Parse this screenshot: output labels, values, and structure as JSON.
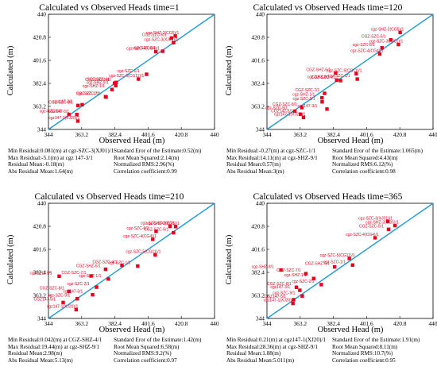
{
  "chart_data": [
    {
      "type": "scatter",
      "title": "Calculated vs Observed Heads   time=1",
      "xlabel": "Observed Head (m)",
      "ylabel": "Calculated (m)",
      "xlim": [
        344,
        440
      ],
      "ylim": [
        344,
        440
      ],
      "ticks": [
        "344",
        "363.2",
        "382.4",
        "401.6",
        "420.8",
        "440"
      ],
      "reference_line": "y=x",
      "points": [
        {
          "label": "cgz-SZC-3(XJ01)/1",
          "x": 416.3,
          "y": 416.3
        },
        {
          "label": "cgz-SHZ-2(CG5)/1",
          "x": 417.3,
          "y": 421.9
        },
        {
          "label": "CGZ-SZC-5/1",
          "x": 415.1,
          "y": 420.2
        },
        {
          "label": "cgz-SZC-4(CG4)/1",
          "x": 406.1,
          "y": 408.9
        },
        {
          "label": "cgz-SZC-6/1",
          "x": 410.0,
          "y": 409.2
        },
        {
          "label": "cgz-SZC-1/1",
          "x": 400.7,
          "y": 390.0
        },
        {
          "label": "cgz-SZC-5(CG11)/1",
          "x": 396.0,
          "y": 386.0
        },
        {
          "label": "CGZ-SZC-4/1",
          "x": 383.1,
          "y": 383.2
        },
        {
          "label": "CGZ-SHZ-5/1",
          "x": 382.2,
          "y": 382.6
        },
        {
          "label": "cgz-SHZ-9/1",
          "x": 382.9,
          "y": 380.5
        },
        {
          "label": "cgz-SHZ-1/1",
          "x": 380.7,
          "y": 377.3
        },
        {
          "label": "CGZ-SZC-7/1",
          "x": 377.0,
          "y": 371.3
        },
        {
          "label": "cgz-SZC-2/1",
          "x": 377.3,
          "y": 371.0
        },
        {
          "label": "CGZ-SZC-8/1",
          "x": 361.1,
          "y": 364.0
        },
        {
          "label": "cgz147-3/1",
          "x": 363.5,
          "y": 364.6
        },
        {
          "label": "cgz-SZC-9/1",
          "x": 355.8,
          "y": 356.5
        },
        {
          "label": "CGZ147-5/1",
          "x": 360.4,
          "y": 356.4
        },
        {
          "label": "cgz147-1(XJ20)/1",
          "x": 361.0,
          "y": 351.0
        }
      ],
      "stats_left": [
        "Min Residual:0.081(m) at cgz-SZC-3(XJ01)/1",
        "Max Residual:-5.1(m) at cgz 147-3/1",
        "Residual Mean:-0.18(m)",
        "Abs Residual Mean:1.64(m)"
      ],
      "stats_right": [
        "Standard Eror of the Estimate:0.52(m)",
        "Root Mean Squared:2.14(m)",
        "Normalized RMS:2.96(%)",
        "Correlation coefficient:0.99"
      ]
    },
    {
      "type": "scatter",
      "title": "Calculated vs Observed Heads   time=120",
      "xlabel": "Observed Head (m)",
      "ylabel": "Calculated (m)",
      "xlim": [
        344,
        440
      ],
      "ylim": [
        344,
        440
      ],
      "ticks": [
        "344",
        "363.2",
        "382.4",
        "401.6",
        "420.8",
        "440"
      ],
      "reference_line": "y=x",
      "points": [
        {
          "label": "cgz-SHZ-2(CG5)/1",
          "x": 421.0,
          "y": 424.9
        },
        {
          "label": "CGZ-SZC-5/1",
          "x": 415.6,
          "y": 418.7
        },
        {
          "label": "cgz-SZC-3(XJ01)/1",
          "x": 420.0,
          "y": 414.8
        },
        {
          "label": "cgz-SZC-6/1",
          "x": 410.5,
          "y": 412.0
        },
        {
          "label": "cgz-SZC-4(CG4)/1",
          "x": 409.2,
          "y": 406.9
        },
        {
          "label": "CGZ-SHZ-5/1",
          "x": 383.7,
          "y": 391.0
        },
        {
          "label": "cgz-SZC-5(CG11)/1",
          "x": 395.6,
          "y": 390.5
        },
        {
          "label": "cgz-SHZ-9/1",
          "x": 384.3,
          "y": 385.2
        },
        {
          "label": "CGZ-SZC-4/1",
          "x": 386.5,
          "y": 384.7
        },
        {
          "label": "cgz-SZC-1/1",
          "x": 396.2,
          "y": 386.0
        },
        {
          "label": "CGZ-SZC-7/1",
          "x": 377.3,
          "y": 374.1
        },
        {
          "label": "cgz-SHZ-1/1",
          "x": 375.8,
          "y": 370.4
        },
        {
          "label": "cgz-SZC-2/1",
          "x": 375.9,
          "y": 367.0
        },
        {
          "label": "CGZ-SZC-8/1",
          "x": 364.2,
          "y": 362.2
        },
        {
          "label": "cgz147-3/1",
          "x": 378.7,
          "y": 361.0
        },
        {
          "label": "cgz-SZC-9/1",
          "x": 360.1,
          "y": 359.2
        },
        {
          "label": "CGZ147-5/1",
          "x": 363.4,
          "y": 356.7
        },
        {
          "label": "cgz147-1(XJ20)/1",
          "x": 365.1,
          "y": 354.0
        }
      ],
      "stats_left": [
        "Min Residual:-0.27(m) at cgz-SZC-1/1",
        "Max Residual:14.11(m) at cgz-SHZ-9/1",
        "Residual Mean:0.57(m)",
        "Abs Residual Mean:3(m)"
      ],
      "stats_right": [
        "Standard Eror of the Estimate:1.065(m)",
        "Root Mean Squared:4.43(m)",
        "Normalized RMS:6.12(%)",
        "Correlation coefficient:0.98"
      ]
    },
    {
      "type": "scatter",
      "title": "Calculated vs Observed Heads   time=210",
      "xlabel": "Observed Head (m)",
      "ylabel": "Calculated (m)",
      "xlim": [
        344,
        440
      ],
      "ylim": [
        344,
        440
      ],
      "ticks": [
        "344",
        "363.2",
        "382.4",
        "401.6",
        "420.8",
        "440"
      ],
      "reference_line": "y=x",
      "points": [
        {
          "label": "cgz-SZC-3(XJ01)/1",
          "x": 414.3,
          "y": 420.8
        },
        {
          "label": "cgz-SHZ-2(CG5)/1",
          "x": 417.5,
          "y": 420.6
        },
        {
          "label": "cgz-SZC-6/1",
          "x": 406.2,
          "y": 416.6
        },
        {
          "label": "CGZ-SZC-5/1",
          "x": 416.3,
          "y": 415.5
        },
        {
          "label": "cgz-SZC-4(CG4)/1",
          "x": 404.3,
          "y": 410.0
        },
        {
          "label": "cgz-SZC-5(CG11)/1",
          "x": 405.7,
          "y": 397.0
        },
        {
          "label": "cgz-SZC-1/1",
          "x": 395.6,
          "y": 387.7
        },
        {
          "label": "CGZ-SZC-4/1",
          "x": 386.5,
          "y": 388.2
        },
        {
          "label": "CGZ-SHZ-5/1",
          "x": 377.0,
          "y": 385.0
        },
        {
          "label": "cgz-SHZ-9/1",
          "x": 350.2,
          "y": 379.2
        },
        {
          "label": "CGZ-SZC-7/1",
          "x": 368.6,
          "y": 379.4
        },
        {
          "label": "cgz-SHZ-1/1",
          "x": 378.6,
          "y": 376.9
        },
        {
          "label": "cgz-SZC-2/1",
          "x": 371.8,
          "y": 370.1
        },
        {
          "label": "CGZ-SZC-8/1",
          "x": 355.9,
          "y": 366.6
        },
        {
          "label": "cgz147-3/1",
          "x": 369.5,
          "y": 363.8
        },
        {
          "label": "cgz-SZC-9/1",
          "x": 360.6,
          "y": 360.4
        },
        {
          "label": "CGZ147-5/1",
          "x": 352.5,
          "y": 357.3
        },
        {
          "label": "cgz147-1(XJ20)/1",
          "x": 360.0,
          "y": 351.3
        }
      ],
      "stats_left": [
        "Min Residual:0.042(m) at CGZ-SHZ-4/1",
        "Max Residual:19.44(m) at cgz-SHZ-9/1",
        "Residual Mean:2.98(m)",
        "Abs Residual Mean:5.13(m)"
      ],
      "stats_right": [
        "Standard Eror of the Estimate:1.42(m)",
        "Root Mean Squared:6.58(m)",
        "Normalized RMS:9.2(%)",
        "Correlation coefficient:0.97"
      ]
    },
    {
      "type": "scatter",
      "title": "Calculated vs Observed Heads   time=365",
      "xlabel": "Observed Head (m)",
      "ylabel": "Calculated (m)",
      "xlim": [
        344,
        440
      ],
      "ylim": [
        344,
        440
      ],
      "ticks": [
        "344",
        "363.2",
        "382.4",
        "401.6",
        "420.8",
        "440"
      ],
      "reference_line": "y=x",
      "points": [
        {
          "label": "cgz-SZC-3(XJ01)/1",
          "x": 413.9,
          "y": 424.9
        },
        {
          "label": "cgz-SHZ-2(CG5)/1",
          "x": 418.0,
          "y": 421.4
        },
        {
          "label": "CGZ-SZC-5/1",
          "x": 414.3,
          "y": 418.3
        },
        {
          "label": "cgz-SZC-4(CG4)/1",
          "x": 406.5,
          "y": 411.2
        },
        {
          "label": "cgz-SZC-5(CG11)/1",
          "x": 391.6,
          "y": 394.0
        },
        {
          "label": "cgz-SZC-1/1",
          "x": 393.5,
          "y": 388.5
        },
        {
          "label": "CGZ-SHZ-5/1",
          "x": 383.1,
          "y": 387.0
        },
        {
          "label": "cgz-SHZ-9/1",
          "x": 352.1,
          "y": 384.4
        },
        {
          "label": "CGZ-SZC-7/1",
          "x": 366.5,
          "y": 381.3
        },
        {
          "label": "cgz-SHZ-1/1",
          "x": 371.0,
          "y": 377.3
        },
        {
          "label": "cgz-SZC-2/1",
          "x": 375.4,
          "y": 372.2
        },
        {
          "label": "CGZ-SZC-8/1",
          "x": 361.0,
          "y": 370.0
        },
        {
          "label": "cgz147-3/1",
          "x": 363.0,
          "y": 367.5
        },
        {
          "label": "cgz-SZC-9/1",
          "x": 364.4,
          "y": 362.7
        },
        {
          "label": "CGZ147-5/1",
          "x": 359.4,
          "y": 359.6
        },
        {
          "label": "cgz147-1(XJ20)/1",
          "x": 359.0,
          "y": 356.5
        }
      ],
      "stats_left": [
        "Min Residual:0.21(m) at cgz147-1(XJ20)/1",
        "Max Residual:28.36(m) at cgz-SHZ-9/1",
        "Residual Mean:1.88(m)",
        "Abs Residual Mean:5.011(m)"
      ],
      "stats_right": [
        "Standard Eror of the Estimate:1.91(m)",
        "Root Mean Squared:8.11(m)",
        "Normalized RMS:10.7(%)",
        "Correlation coefficient:0.95"
      ]
    }
  ]
}
